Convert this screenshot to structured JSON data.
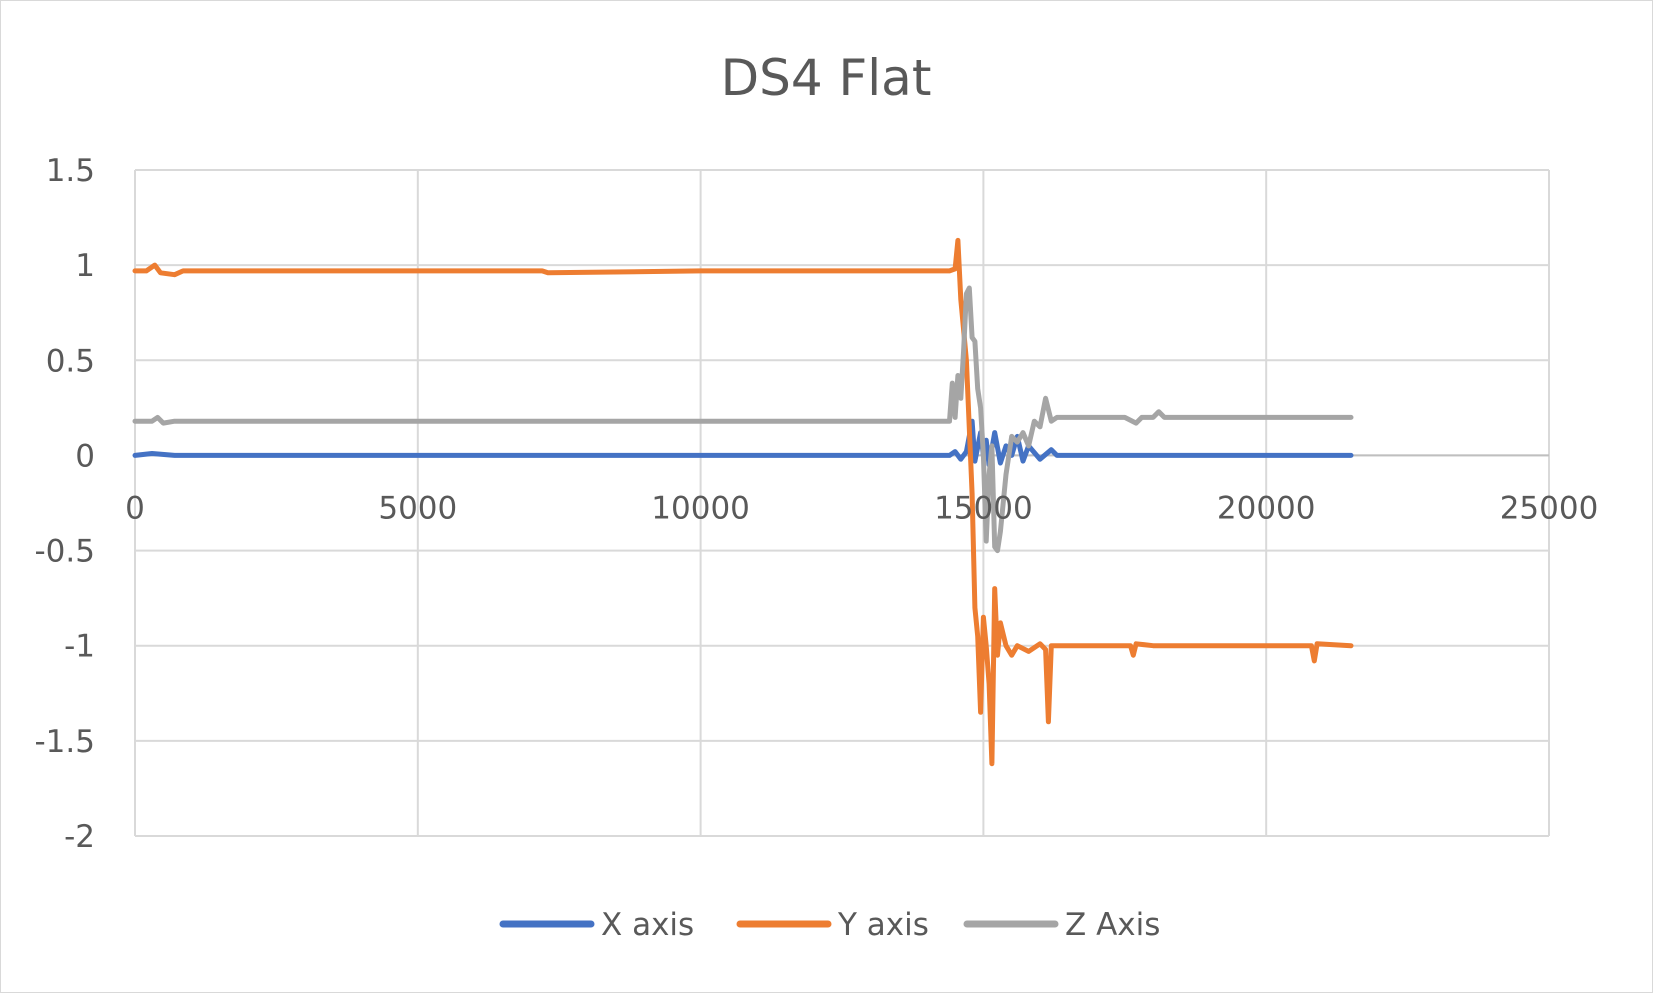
{
  "chart_data": {
    "type": "line",
    "title": "DS4 Flat",
    "xlabel": "",
    "ylabel": "",
    "xlim": [
      0,
      25000
    ],
    "ylim": [
      -2,
      1.5
    ],
    "x_ticks": [
      0,
      5000,
      10000,
      15000,
      20000,
      25000
    ],
    "y_ticks": [
      1.5,
      1,
      0.5,
      0,
      -0.5,
      -1,
      -1.5,
      -2
    ],
    "grid": true,
    "legend_position": "bottom",
    "series": [
      {
        "name": "X axis",
        "color": "#4472C4",
        "points": [
          [
            0,
            0.0
          ],
          [
            300,
            0.01
          ],
          [
            700,
            0.0
          ],
          [
            2000,
            0.0
          ],
          [
            5000,
            0.0
          ],
          [
            8000,
            0.0
          ],
          [
            11000,
            0.0
          ],
          [
            14400,
            0.0
          ],
          [
            14500,
            0.02
          ],
          [
            14600,
            -0.02
          ],
          [
            14700,
            0.02
          ],
          [
            14800,
            0.18
          ],
          [
            14850,
            -0.03
          ],
          [
            14950,
            0.12
          ],
          [
            15000,
            0.0
          ],
          [
            15050,
            0.08
          ],
          [
            15100,
            -0.05
          ],
          [
            15200,
            0.12
          ],
          [
            15300,
            -0.04
          ],
          [
            15400,
            0.05
          ],
          [
            15500,
            0.0
          ],
          [
            15600,
            0.1
          ],
          [
            15700,
            -0.03
          ],
          [
            15800,
            0.05
          ],
          [
            16000,
            -0.02
          ],
          [
            16200,
            0.03
          ],
          [
            16300,
            0.0
          ],
          [
            17000,
            0.0
          ],
          [
            18000,
            0.0
          ],
          [
            19000,
            0.0
          ],
          [
            20000,
            0.0
          ],
          [
            21000,
            0.0
          ],
          [
            21500,
            0.0
          ]
        ]
      },
      {
        "name": "Y axis",
        "color": "#ED7D31",
        "points": [
          [
            0,
            0.97
          ],
          [
            200,
            0.97
          ],
          [
            350,
            1.0
          ],
          [
            450,
            0.96
          ],
          [
            700,
            0.95
          ],
          [
            850,
            0.97
          ],
          [
            2000,
            0.97
          ],
          [
            5000,
            0.97
          ],
          [
            7200,
            0.97
          ],
          [
            7300,
            0.96
          ],
          [
            10000,
            0.97
          ],
          [
            12000,
            0.97
          ],
          [
            14400,
            0.97
          ],
          [
            14500,
            0.98
          ],
          [
            14550,
            1.13
          ],
          [
            14600,
            0.82
          ],
          [
            14700,
            0.5
          ],
          [
            14800,
            -0.2
          ],
          [
            14850,
            -0.8
          ],
          [
            14900,
            -0.95
          ],
          [
            14950,
            -1.35
          ],
          [
            15000,
            -0.85
          ],
          [
            15050,
            -1.0
          ],
          [
            15100,
            -1.2
          ],
          [
            15150,
            -1.62
          ],
          [
            15200,
            -0.7
          ],
          [
            15250,
            -1.05
          ],
          [
            15300,
            -0.88
          ],
          [
            15400,
            -1.0
          ],
          [
            15500,
            -1.05
          ],
          [
            15600,
            -1.0
          ],
          [
            15800,
            -1.03
          ],
          [
            16000,
            -0.99
          ],
          [
            16100,
            -1.02
          ],
          [
            16150,
            -1.4
          ],
          [
            16200,
            -1.0
          ],
          [
            16500,
            -1.0
          ],
          [
            17000,
            -1.0
          ],
          [
            17600,
            -1.0
          ],
          [
            17650,
            -1.05
          ],
          [
            17700,
            -0.99
          ],
          [
            18000,
            -1.0
          ],
          [
            19000,
            -1.0
          ],
          [
            20000,
            -1.0
          ],
          [
            20800,
            -1.0
          ],
          [
            20850,
            -1.08
          ],
          [
            20900,
            -0.99
          ],
          [
            21500,
            -1.0
          ]
        ]
      },
      {
        "name": "Z Axis",
        "color": "#A5A5A5",
        "points": [
          [
            0,
            0.18
          ],
          [
            300,
            0.18
          ],
          [
            400,
            0.2
          ],
          [
            500,
            0.17
          ],
          [
            700,
            0.18
          ],
          [
            2000,
            0.18
          ],
          [
            5000,
            0.18
          ],
          [
            8000,
            0.18
          ],
          [
            11000,
            0.18
          ],
          [
            14300,
            0.18
          ],
          [
            14400,
            0.18
          ],
          [
            14450,
            0.38
          ],
          [
            14500,
            0.2
          ],
          [
            14550,
            0.42
          ],
          [
            14600,
            0.3
          ],
          [
            14650,
            0.55
          ],
          [
            14700,
            0.85
          ],
          [
            14750,
            0.88
          ],
          [
            14800,
            0.62
          ],
          [
            14850,
            0.6
          ],
          [
            14900,
            0.35
          ],
          [
            14950,
            0.25
          ],
          [
            15000,
            0.0
          ],
          [
            15050,
            -0.45
          ],
          [
            15100,
            -0.1
          ],
          [
            15150,
            0.05
          ],
          [
            15200,
            -0.48
          ],
          [
            15250,
            -0.5
          ],
          [
            15300,
            -0.4
          ],
          [
            15400,
            -0.1
          ],
          [
            15500,
            0.1
          ],
          [
            15600,
            0.07
          ],
          [
            15700,
            0.12
          ],
          [
            15800,
            0.05
          ],
          [
            15900,
            0.18
          ],
          [
            16000,
            0.15
          ],
          [
            16100,
            0.3
          ],
          [
            16200,
            0.18
          ],
          [
            16300,
            0.2
          ],
          [
            17000,
            0.2
          ],
          [
            17500,
            0.2
          ],
          [
            17700,
            0.17
          ],
          [
            17800,
            0.2
          ],
          [
            18000,
            0.2
          ],
          [
            18100,
            0.23
          ],
          [
            18200,
            0.2
          ],
          [
            19000,
            0.2
          ],
          [
            20000,
            0.2
          ],
          [
            21000,
            0.2
          ],
          [
            21500,
            0.2
          ]
        ]
      }
    ]
  }
}
